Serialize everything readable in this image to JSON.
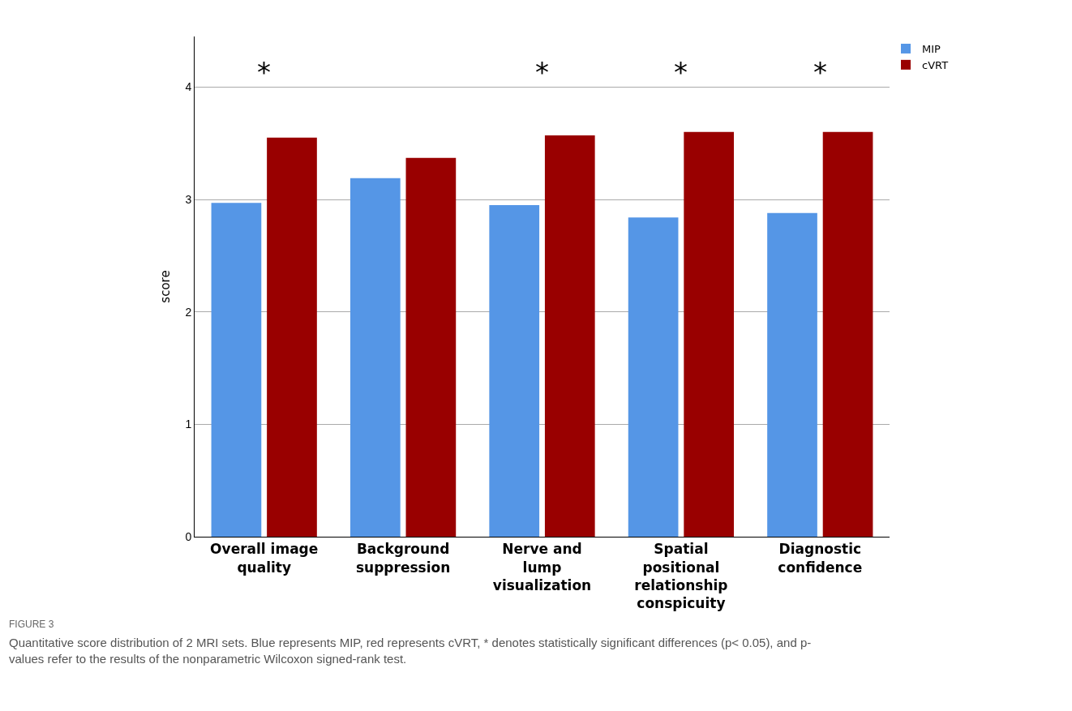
{
  "chart_data": {
    "type": "bar",
    "ylabel": "score",
    "categories": [
      "Overall image\nquality",
      "Background\nsuppression",
      "Nerve and\nlump\nvisualization",
      "Spatial\npositional\nrelationship\nconspicuity",
      "Diagnostic\nconfidence"
    ],
    "series": [
      {
        "name": "MIP",
        "color": "#5596e6",
        "values": [
          2.97,
          3.19,
          2.95,
          2.84,
          2.88
        ]
      },
      {
        "name": "cVRT",
        "color": "#990000",
        "values": [
          3.55,
          3.37,
          3.57,
          3.6,
          3.6
        ]
      }
    ],
    "ylim": [
      0,
      4.45
    ],
    "yticks": [
      0,
      1,
      2,
      3,
      4
    ],
    "grid": "y",
    "legend": "top right",
    "annotations": [
      "*",
      "*",
      "*",
      "*",
      "FIGURE 3",
      "Quantitative score distribution of 2 MRI sets. Blue represents MIP, red represents cVRT, * denotes statistically significant differences (p< 0.05), and p-\nvalues refer to the results of the nonparametric Wilcoxon signed-rank test."
    ]
  }
}
